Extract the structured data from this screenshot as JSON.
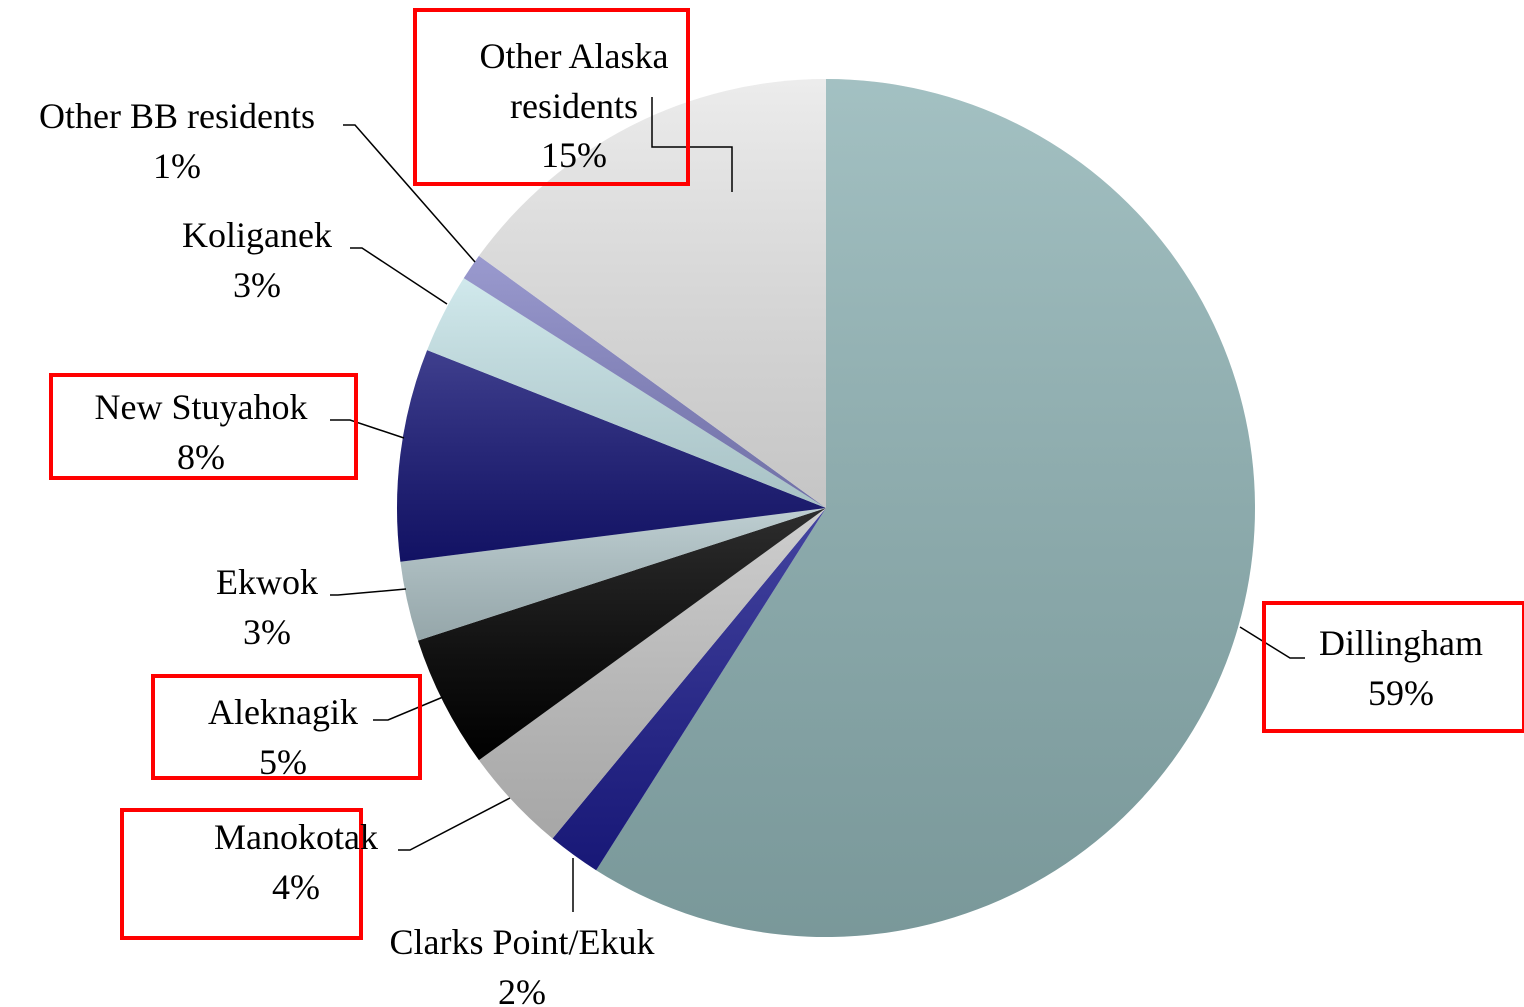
{
  "chart_data": {
    "type": "pie",
    "categories": [
      "Dillingham",
      "Clarks Point/Ekuk",
      "Manokotak",
      "Aleknagik",
      "Ekwok",
      "New Stuyahok",
      "Koliganek",
      "Other BB residents",
      "Other Alaska residents"
    ],
    "values": [
      59,
      2,
      4,
      5,
      3,
      8,
      3,
      1,
      15
    ],
    "value_labels": [
      "59%",
      "2%",
      "4%",
      "5%",
      "3%",
      "8%",
      "3%",
      "1%",
      "15%"
    ],
    "colors": [
      "#8fb3b5",
      "#1c1c8c",
      "#c4c4c4",
      "#000000",
      "#b0c4c8",
      "#151575",
      "#c6e4e8",
      "#8484c4",
      "#e8e8e8"
    ]
  }
}
